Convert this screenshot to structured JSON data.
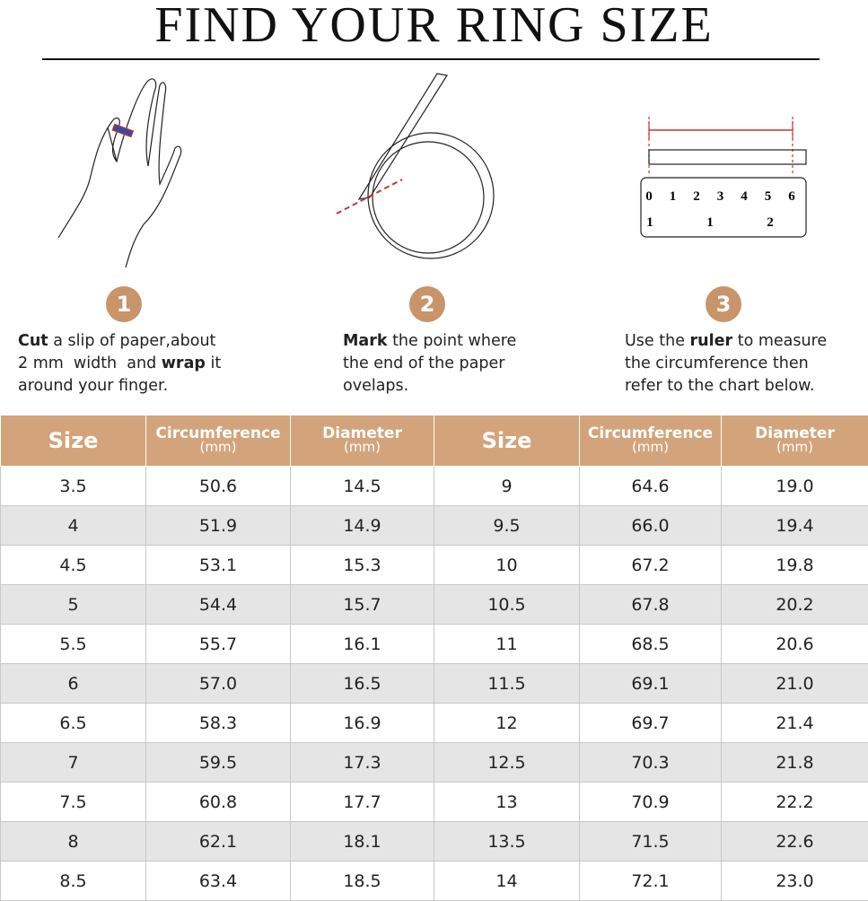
{
  "title": "FIND YOUR RING SIZE",
  "steps": [
    {
      "number": "1",
      "lines": [
        [
          {
            "text": "Cut",
            "bold": true
          },
          {
            "text": " a slip of paper,about"
          }
        ],
        [
          {
            "text": "2 mm  width  and "
          },
          {
            "text": "wrap",
            "bold": true
          },
          {
            "text": " it"
          }
        ],
        [
          {
            "text": "around your finger."
          }
        ]
      ]
    },
    {
      "number": "2",
      "lines": [
        [
          {
            "text": "Mark",
            "bold": true
          },
          {
            "text": " the point where"
          }
        ],
        [
          {
            "text": "the end of the paper"
          }
        ],
        [
          {
            "text": "ovelaps."
          }
        ]
      ]
    },
    {
      "number": "3",
      "lines": [
        [
          {
            "text": "Use the "
          },
          {
            "text": "ruler",
            "bold": true
          },
          {
            "text": " to measure"
          }
        ],
        [
          {
            "text": "the circumference then"
          }
        ],
        [
          {
            "text": "refer to the chart below."
          }
        ]
      ]
    }
  ],
  "ruler": {
    "top_marks": [
      "0",
      "1",
      "2",
      "3",
      "4",
      "5",
      "6"
    ],
    "bottom_marks": [
      "1",
      "1",
      "2"
    ]
  },
  "table": {
    "header": [
      {
        "label": "Size"
      },
      {
        "label": "Circumference",
        "unit": "(mm)"
      },
      {
        "label": "Diameter",
        "unit": "(mm)"
      },
      {
        "label": "Size"
      },
      {
        "label": "Circumference",
        "unit": "(mm)"
      },
      {
        "label": "Diameter",
        "unit": "(mm)"
      }
    ],
    "rows": [
      [
        "3.5",
        "50.6",
        "14.5",
        "9",
        "64.6",
        "19.0"
      ],
      [
        "4",
        "51.9",
        "14.9",
        "9.5",
        "66.0",
        "19.4"
      ],
      [
        "4.5",
        "53.1",
        "15.3",
        "10",
        "67.2",
        "19.8"
      ],
      [
        "5",
        "54.4",
        "15.7",
        "10.5",
        "67.8",
        "20.2"
      ],
      [
        "5.5",
        "55.7",
        "16.1",
        "11",
        "68.5",
        "20.6"
      ],
      [
        "6",
        "57.0",
        "16.5",
        "11.5",
        "69.1",
        "21.0"
      ],
      [
        "6.5",
        "58.3",
        "16.9",
        "12",
        "69.7",
        "21.4"
      ],
      [
        "7",
        "59.5",
        "17.3",
        "12.5",
        "70.3",
        "21.8"
      ],
      [
        "7.5",
        "60.8",
        "17.7",
        "13",
        "70.9",
        "22.2"
      ],
      [
        "8",
        "62.1",
        "18.1",
        "13.5",
        "71.5",
        "22.6"
      ],
      [
        "8.5",
        "63.4",
        "18.5",
        "14",
        "72.1",
        "23.0"
      ]
    ]
  }
}
